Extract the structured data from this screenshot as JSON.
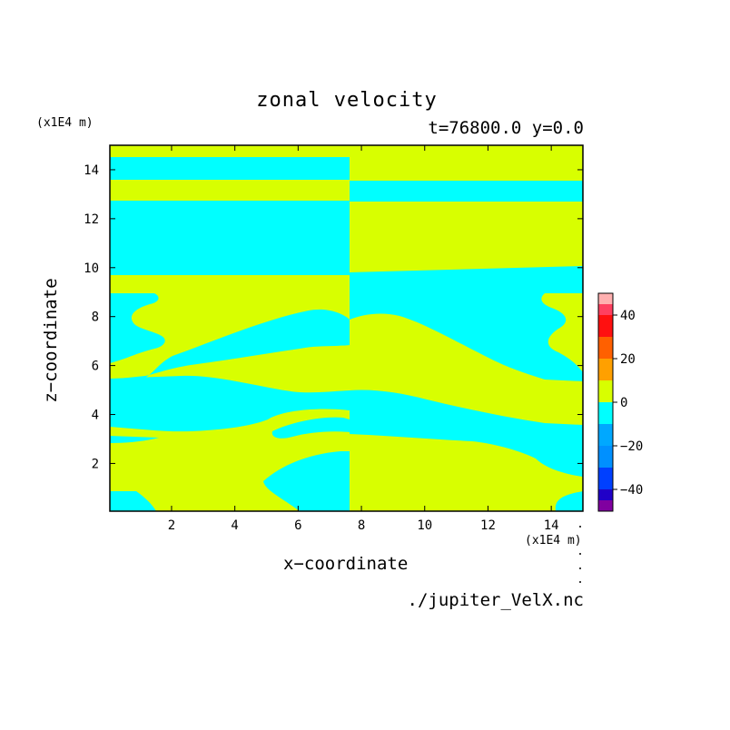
{
  "chart_data": {
    "type": "heatmap",
    "title": "zonal velocity",
    "subtitle": "t=76800.0 y=0.0",
    "xlabel": "x−coordinate",
    "ylabel": "z−coordinate",
    "x_unit_label": "(x1E4 m)",
    "y_unit_label": "(x1E4 m)",
    "source_label": "./jupiter_VelX.nc",
    "xlim": [
      0.05,
      15.0
    ],
    "ylim": [
      0.05,
      15.0
    ],
    "x_ticks": [
      2,
      4,
      6,
      8,
      10,
      12,
      14
    ],
    "y_ticks": [
      2,
      4,
      6,
      8,
      10,
      12,
      14
    ],
    "colorbar": {
      "levels": [
        -50,
        -45,
        -40,
        -30,
        -20,
        -10,
        0,
        10,
        20,
        30,
        40,
        45,
        50
      ],
      "colors": [
        "#8000a0",
        "#2000c8",
        "#0040ff",
        "#0090ff",
        "#00a8ff",
        "#00ffff",
        "#d8ff00",
        "#ffa000",
        "#ff6000",
        "#ff1010",
        "#ff4060",
        "#ffb0b0"
      ],
      "tick_values": [
        -40,
        -20,
        0,
        20,
        40
      ],
      "tick_labels": [
        "−40",
        "−20",
        "0",
        "20",
        "40"
      ]
    },
    "regions": {
      "positive_color": "#d8ff00",
      "negative_color": "#00ffff",
      "band_boundaries_z": [
        9.7,
        12.6,
        13.5,
        14.5
      ],
      "note_symmetry_x": 7.55
    }
  }
}
